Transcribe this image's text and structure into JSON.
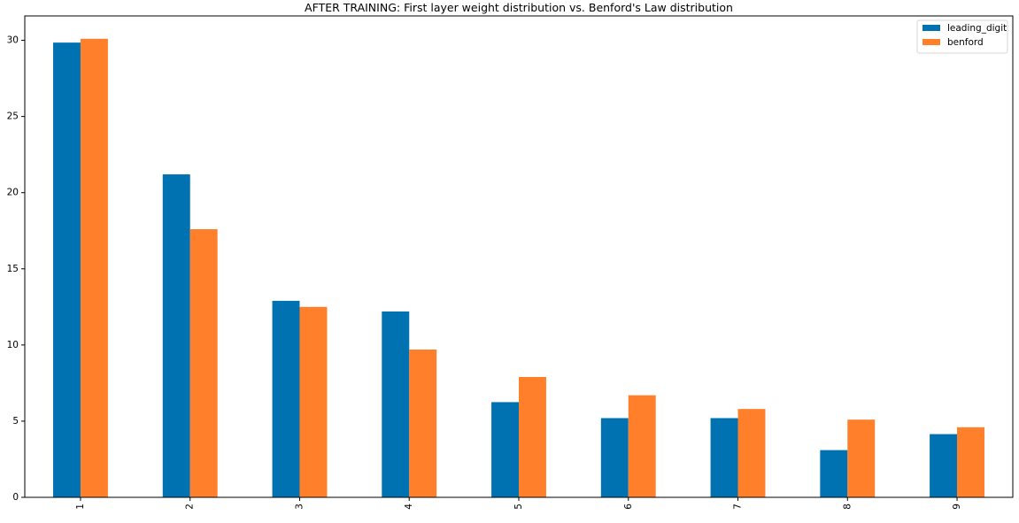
{
  "chart_data": {
    "type": "bar",
    "title": "AFTER TRAINING: First layer weight distribution vs. Benford's Law distribution",
    "xlabel": "",
    "ylabel": "",
    "categories": [
      "1",
      "2",
      "3",
      "4",
      "5",
      "6",
      "7",
      "8",
      "9"
    ],
    "series": [
      {
        "name": "leading_digit",
        "color": "#0072b2",
        "values": [
          29.85,
          21.2,
          12.9,
          12.2,
          6.25,
          5.2,
          5.2,
          3.1,
          4.15
        ]
      },
      {
        "name": "benford",
        "color": "#ff7f2a",
        "values": [
          30.1,
          17.6,
          12.5,
          9.7,
          7.9,
          6.7,
          5.8,
          5.1,
          4.6
        ]
      }
    ],
    "ylim": [
      0,
      31.6
    ],
    "yticks": [
      0,
      5,
      10,
      15,
      20,
      25,
      30
    ],
    "grid": false,
    "legend": "top-right"
  }
}
